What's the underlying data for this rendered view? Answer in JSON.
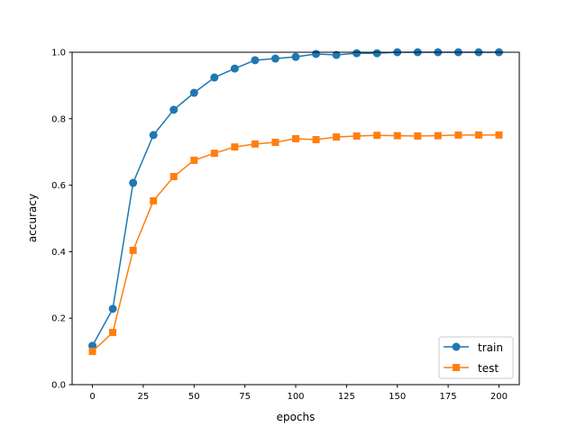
{
  "chart_data": {
    "type": "line",
    "title": "",
    "xlabel": "epochs",
    "ylabel": "accuracy",
    "xlim": [
      -10,
      210
    ],
    "ylim": [
      0,
      1.0
    ],
    "xticks": [
      0,
      25,
      50,
      75,
      100,
      125,
      150,
      175,
      200
    ],
    "yticks": [
      0.0,
      0.2,
      0.4,
      0.6,
      0.8,
      1.0
    ],
    "ytick_labels": [
      "0.0",
      "0.2",
      "0.4",
      "0.6",
      "0.8",
      "1.0"
    ],
    "grid": false,
    "legend_position": "lower-right",
    "x": [
      0,
      10,
      20,
      30,
      40,
      50,
      60,
      70,
      80,
      90,
      100,
      110,
      120,
      130,
      140,
      150,
      160,
      170,
      180,
      190,
      200
    ],
    "series": [
      {
        "name": "train",
        "marker": "circle",
        "color": "#1f77b4",
        "values": [
          0.117,
          0.228,
          0.607,
          0.751,
          0.827,
          0.878,
          0.924,
          0.951,
          0.976,
          0.981,
          0.986,
          0.995,
          0.992,
          0.997,
          0.997,
          1.0,
          1.0,
          1.0,
          1.0,
          1.0,
          1.0
        ]
      },
      {
        "name": "test",
        "marker": "square",
        "color": "#ff7f0e",
        "values": [
          0.1,
          0.157,
          0.404,
          0.553,
          0.626,
          0.675,
          0.696,
          0.715,
          0.724,
          0.729,
          0.74,
          0.737,
          0.745,
          0.748,
          0.75,
          0.749,
          0.748,
          0.749,
          0.751,
          0.751,
          0.751
        ]
      }
    ]
  }
}
